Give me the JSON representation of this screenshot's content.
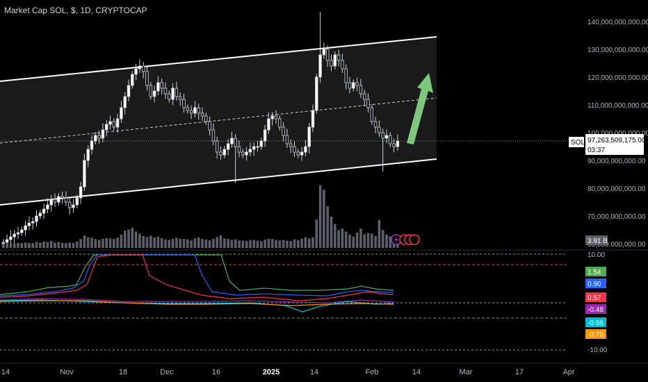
{
  "header": {
    "title": "Market Cap SOL, $, 1D, CRYPTOCAP"
  },
  "colors": {
    "background": "#000000",
    "candle_up": "#ffffff",
    "candle_down": "#131722",
    "channel": "#ffffff",
    "arrow": "#7ec87e",
    "stoch_green": "#4caf50",
    "stoch_blue": "#2962ff",
    "stoch_red": "#f23645",
    "stoch_purple": "#9c27b0",
    "stoch_cyan": "#00bcd4",
    "stoch_orange": "#ff9800"
  },
  "price_axis": {
    "ticks": [
      "140,000,000,000.00",
      "130,000,000,000.00",
      "120,000,000,000.00",
      "110,000,000,000.00",
      "100,000,000,000.00",
      "90,000,000,000.00",
      "80,000,000,000.00",
      "70,000,000,000.00",
      "60,000,000,000.00"
    ],
    "current_symbol": "SOL",
    "current_price": "97,263,509,175.00",
    "countdown": "03:37",
    "volume_badge": "3.91 B"
  },
  "indicator_axis": {
    "top_label": "10.00",
    "bottom_label": "-10.00",
    "badges": [
      {
        "text": "1.54",
        "color": "#4caf50"
      },
      {
        "text": "0.90",
        "color": "#2962ff"
      },
      {
        "text": "0.57",
        "color": "#f23645"
      },
      {
        "text": "-0.48",
        "color": "#9c27b0"
      },
      {
        "text": "-0.66",
        "color": "#00bcd4"
      },
      {
        "text": "-0.76",
        "color": "#ff9800"
      }
    ]
  },
  "time_axis": {
    "labels": [
      "14",
      "Nov",
      "18",
      "Dec",
      "16",
      "2025",
      "14",
      "Feb",
      "14",
      "Mar",
      "17",
      "Apr"
    ],
    "bold_label": "2025"
  },
  "chart_data": {
    "type": "candlestick",
    "title": "Market Cap SOL, $, 1D, CRYPTOCAP",
    "ylim": [
      57000000000,
      144000000000
    ],
    "price_close": [
      60.5,
      61.5,
      62.5,
      63.5,
      64,
      65,
      66.5,
      67.5,
      68,
      70,
      71,
      72.5,
      74,
      76,
      75,
      77,
      76.5,
      75,
      73,
      74,
      76.5,
      80.5,
      90,
      94,
      97,
      99,
      98,
      101,
      103,
      104,
      102,
      105,
      109,
      113,
      117,
      121,
      123,
      124,
      122,
      117,
      113,
      115,
      118,
      116,
      114,
      112,
      116,
      113,
      112,
      109,
      108,
      107,
      109,
      107,
      106,
      104,
      101,
      97,
      93,
      92,
      94,
      96,
      98,
      95,
      93,
      92,
      93,
      94,
      95,
      95,
      97,
      101,
      105,
      106,
      105,
      102,
      99,
      96,
      95,
      93,
      92,
      93,
      95,
      102,
      108,
      120,
      128,
      130,
      126,
      124,
      128,
      126,
      123,
      118,
      116,
      118,
      117,
      114,
      112,
      109,
      104,
      102,
      100,
      98,
      99,
      96,
      95,
      97
    ],
    "volume": [
      1.5,
      1.4,
      1.6,
      1.5,
      1.7,
      1.6,
      1.8,
      1.7,
      1.6,
      2.0,
      1.8,
      2.1,
      2.0,
      2.4,
      1.8,
      2.0,
      1.7,
      1.6,
      1.8,
      1.7,
      2.1,
      3.0,
      4.2,
      3.6,
      3.4,
      3.0,
      2.7,
      3.1,
      3.3,
      3.2,
      3.0,
      3.5,
      4.5,
      5.8,
      6.2,
      6.8,
      5.5,
      4.8,
      4.0,
      3.7,
      4.1,
      3.5,
      3.8,
      3.3,
      2.9,
      2.7,
      3.0,
      3.4,
      3.1,
      3.0,
      2.9,
      2.5,
      3.2,
      3.5,
      3.0,
      2.8,
      2.6,
      3.0,
      3.6,
      4.3,
      3.2,
      3.0,
      2.7,
      2.9,
      2.5,
      2.4,
      2.3,
      2.6,
      2.7,
      2.4,
      2.2,
      2.8,
      3.1,
      3.0,
      2.7,
      2.5,
      2.6,
      2.4,
      2.3,
      2.9,
      2.6,
      3.1,
      3.6,
      3.2,
      3.6,
      9.5,
      21.0,
      19.5,
      14.0,
      10.5,
      8.0,
      6.0,
      6.5,
      5.5,
      4.5,
      3.8,
      5.2,
      6.5,
      4.6,
      5.0,
      4.8,
      4.0,
      9.4,
      6.0,
      4.5,
      3.9,
      3.5,
      3.9
    ]
  }
}
